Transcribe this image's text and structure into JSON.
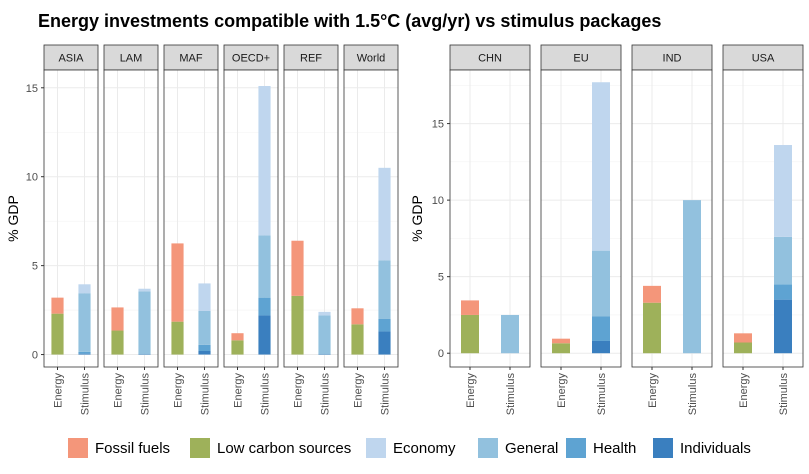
{
  "chart_data": {
    "type": "bar",
    "title": "Energy investments compatible with 1.5°C (avg/yr) vs stimulus packages",
    "ylabel": "% GDP",
    "stack_order": [
      "Fossil fuels",
      "Low carbon sources",
      "Economy",
      "General",
      "Health",
      "Individuals"
    ],
    "colors": {
      "Fossil fuels": "#f4967a",
      "Low carbon sources": "#9eb15a",
      "Economy": "#bfd6ee",
      "General": "#92c1de",
      "Health": "#5ea3d2",
      "Individuals": "#3a7fbf"
    },
    "legend": [
      "Fossil fuels",
      "Low carbon sources",
      "Economy",
      "General",
      "Health",
      "Individuals"
    ],
    "panels": [
      {
        "group": "left",
        "ylim": [
          -0.7,
          16
        ],
        "yticks": [
          0,
          5,
          10,
          15
        ],
        "facets": [
          {
            "name": "ASIA",
            "bars": [
              {
                "category": "Energy",
                "segments": {
                  "Low carbon sources": 2.3,
                  "Fossil fuels": 0.9
                }
              },
              {
                "category": "Stimulus",
                "segments": {
                  "Individuals": 0.05,
                  "Health": 0.1,
                  "General": 3.3,
                  "Economy": 0.5
                }
              }
            ]
          },
          {
            "name": "LAM",
            "bars": [
              {
                "category": "Energy",
                "segments": {
                  "Low carbon sources": 1.35,
                  "Fossil fuels": 1.3
                }
              },
              {
                "category": "Stimulus",
                "segments": {
                  "Individuals": 0.02,
                  "Health": 0.03,
                  "General": 3.5,
                  "Economy": 0.15
                }
              }
            ]
          },
          {
            "name": "MAF",
            "bars": [
              {
                "category": "Energy",
                "segments": {
                  "Low carbon sources": 1.85,
                  "Fossil fuels": 4.4
                }
              },
              {
                "category": "Stimulus",
                "segments": {
                  "Individuals": 0.2,
                  "Health": 0.35,
                  "General": 1.9,
                  "Economy": 1.55
                }
              }
            ]
          },
          {
            "name": "OECD+",
            "bars": [
              {
                "category": "Energy",
                "segments": {
                  "Low carbon sources": 0.8,
                  "Fossil fuels": 0.4
                }
              },
              {
                "category": "Stimulus",
                "segments": {
                  "Individuals": 2.2,
                  "Health": 1.0,
                  "General": 3.5,
                  "Economy": 8.4
                }
              }
            ]
          },
          {
            "name": "REF",
            "bars": [
              {
                "category": "Energy",
                "segments": {
                  "Low carbon sources": 3.3,
                  "Fossil fuels": 3.1
                }
              },
              {
                "category": "Stimulus",
                "segments": {
                  "Individuals": 0.02,
                  "Health": 0.03,
                  "General": 2.15,
                  "Economy": 0.2
                }
              }
            ]
          },
          {
            "name": "World",
            "bars": [
              {
                "category": "Energy",
                "segments": {
                  "Low carbon sources": 1.7,
                  "Fossil fuels": 0.9
                }
              },
              {
                "category": "Stimulus",
                "segments": {
                  "Individuals": 1.3,
                  "Health": 0.7,
                  "General": 3.3,
                  "Economy": 5.2
                }
              }
            ]
          }
        ]
      },
      {
        "group": "right",
        "ylim": [
          -0.9,
          18.5
        ],
        "yticks": [
          0,
          5,
          10,
          15
        ],
        "facets": [
          {
            "name": "CHN",
            "bars": [
              {
                "category": "Energy",
                "segments": {
                  "Low carbon sources": 2.5,
                  "Fossil fuels": 0.95
                }
              },
              {
                "category": "Stimulus",
                "segments": {
                  "General": 2.5
                }
              }
            ]
          },
          {
            "name": "EU",
            "bars": [
              {
                "category": "Energy",
                "segments": {
                  "Low carbon sources": 0.65,
                  "Fossil fuels": 0.3
                }
              },
              {
                "category": "Stimulus",
                "segments": {
                  "Individuals": 0.8,
                  "Health": 1.6,
                  "General": 4.3,
                  "Economy": 11.0
                }
              }
            ]
          },
          {
            "name": "IND",
            "bars": [
              {
                "category": "Energy",
                "segments": {
                  "Low carbon sources": 3.3,
                  "Fossil fuels": 1.1
                }
              },
              {
                "category": "Stimulus",
                "segments": {
                  "General": 10.0
                }
              }
            ]
          },
          {
            "name": "USA",
            "bars": [
              {
                "category": "Energy",
                "segments": {
                  "Low carbon sources": 0.7,
                  "Fossil fuels": 0.6
                }
              },
              {
                "category": "Stimulus",
                "segments": {
                  "Individuals": 3.5,
                  "Health": 1.0,
                  "General": 3.1,
                  "Economy": 6.0
                }
              }
            ]
          }
        ]
      }
    ]
  }
}
